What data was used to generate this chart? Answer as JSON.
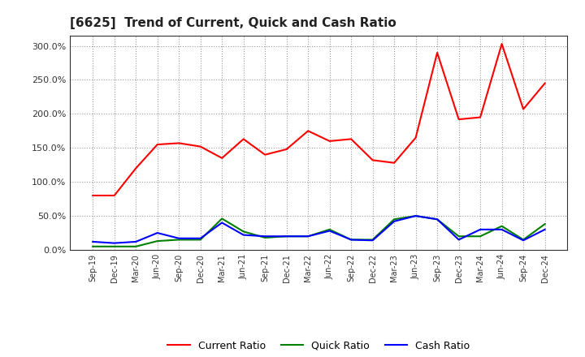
{
  "title": "[6625]  Trend of Current, Quick and Cash Ratio",
  "labels": [
    "Sep-19",
    "Dec-19",
    "Mar-20",
    "Jun-20",
    "Sep-20",
    "Dec-20",
    "Mar-21",
    "Jun-21",
    "Sep-21",
    "Dec-21",
    "Mar-22",
    "Jun-22",
    "Sep-22",
    "Dec-22",
    "Mar-23",
    "Jun-23",
    "Sep-23",
    "Dec-23",
    "Mar-24",
    "Jun-24",
    "Sep-24",
    "Dec-24"
  ],
  "current_ratio": [
    80.0,
    80.0,
    120.0,
    155.0,
    157.0,
    152.0,
    135.0,
    163.0,
    140.0,
    148.0,
    175.0,
    160.0,
    163.0,
    132.0,
    128.0,
    165.0,
    290.0,
    192.0,
    195.0,
    303.0,
    207.0,
    245.0
  ],
  "quick_ratio": [
    5.0,
    5.0,
    5.0,
    13.0,
    15.0,
    15.0,
    46.0,
    27.0,
    18.0,
    20.0,
    20.0,
    30.0,
    15.0,
    15.0,
    45.0,
    50.0,
    45.0,
    20.0,
    20.0,
    35.0,
    15.0,
    38.0
  ],
  "cash_ratio": [
    12.0,
    10.0,
    12.0,
    25.0,
    17.0,
    17.0,
    40.0,
    22.0,
    20.0,
    20.0,
    20.0,
    28.0,
    15.0,
    14.0,
    42.0,
    50.0,
    45.0,
    15.0,
    30.0,
    30.0,
    14.0,
    30.0
  ],
  "current_color": "#ff0000",
  "quick_color": "#008000",
  "cash_color": "#0000ff",
  "bg_color": "#ffffff",
  "plot_bg_color": "#ffffff",
  "grid_color": "#aaaaaa",
  "ylim": [
    0,
    315
  ],
  "yticks": [
    0,
    50,
    100,
    150,
    200,
    250,
    300
  ],
  "legend_labels": [
    "Current Ratio",
    "Quick Ratio",
    "Cash Ratio"
  ]
}
